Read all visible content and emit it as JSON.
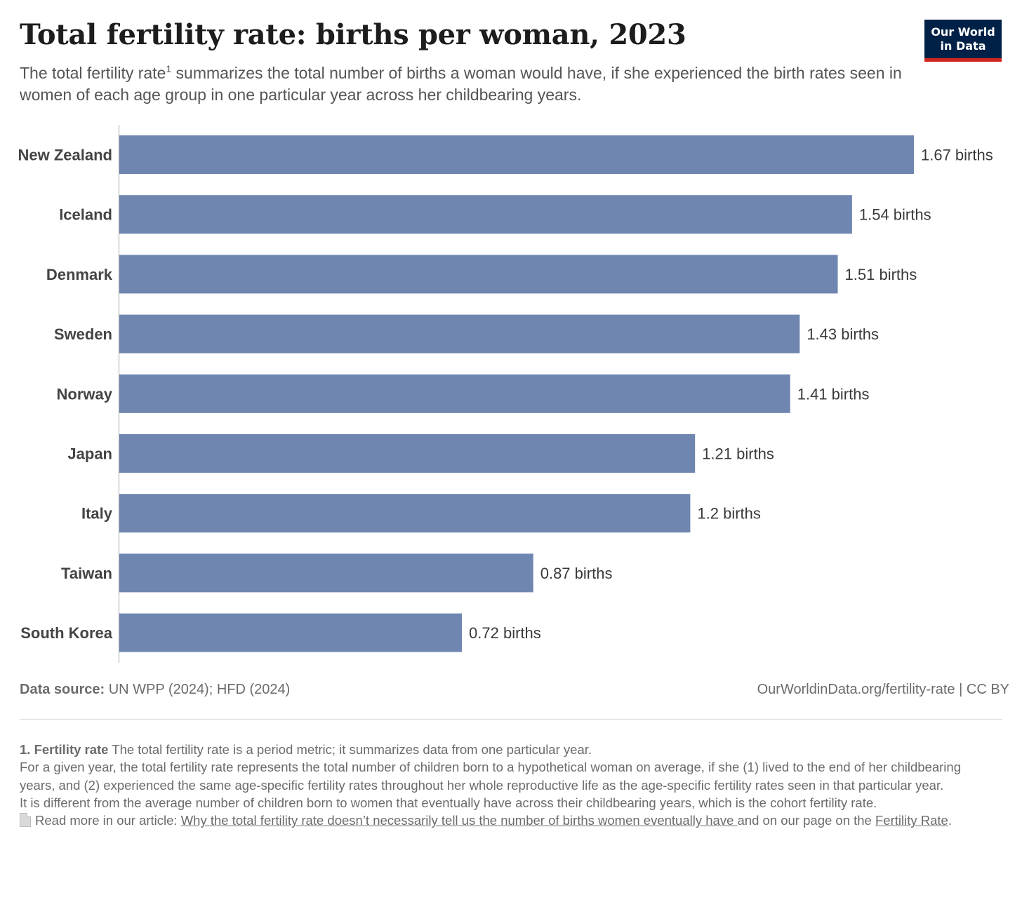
{
  "header": {
    "title": "Total fertility rate: births per woman, 2023",
    "subtitle": "The total fertility rate",
    "subtitle_sup": "1",
    "subtitle_rest": " summarizes the total number of births a woman would have, if she experienced the birth rates seen in women of each age group in one particular year across her childbearing years.",
    "logo_line1": "Our World",
    "logo_line2": "in Data"
  },
  "colors": {
    "bar": "#6f87b0",
    "axis": "#a8a8a8",
    "logo_bg": "#002147",
    "logo_accent": "#ce261e"
  },
  "chart_data": {
    "type": "bar",
    "orientation": "horizontal",
    "categories": [
      "New Zealand",
      "Iceland",
      "Denmark",
      "Sweden",
      "Norway",
      "Japan",
      "Italy",
      "Taiwan",
      "South Korea"
    ],
    "values": [
      1.67,
      1.54,
      1.51,
      1.43,
      1.41,
      1.21,
      1.2,
      0.87,
      0.72
    ],
    "value_labels": [
      "1.67 births",
      "1.54 births",
      "1.51 births",
      "1.43 births",
      "1.41 births",
      "1.21 births",
      "1.2 births",
      "0.87 births",
      "0.72 births"
    ],
    "xlim": [
      0,
      1.67
    ],
    "grid": false,
    "legend": "none"
  },
  "footer": {
    "source_label": "Data source:",
    "source_text": " UN WPP (2024); HFD (2024)",
    "url_text": "OurWorldinData.org/fertility-rate",
    "license_text": " | CC BY"
  },
  "footnote": {
    "label": "1. Fertility rate",
    "line1": " The total fertility rate is a period metric; it summarizes data from one particular year.",
    "para2": "For a given year, the total fertility rate represents the total number of children born to a hypothetical woman on average, if she (1) lived to the end of her childbearing years, and (2) experienced the same age-specific fertility rates throughout her whole reproductive life as the age-specific fertility rates seen in that particular year.",
    "para3": "It is different from the average number of children born to women that eventually have across their childbearing years, which is the  cohort fertility rate.",
    "read_more_prefix": "Read more in our article: ",
    "article_link": "Why the total fertility rate doesn’t necessarily tell us the number of births women eventually have ",
    "read_more_middle": " and on our page on the ",
    "page_link": "Fertility Rate",
    "read_more_end": "."
  }
}
